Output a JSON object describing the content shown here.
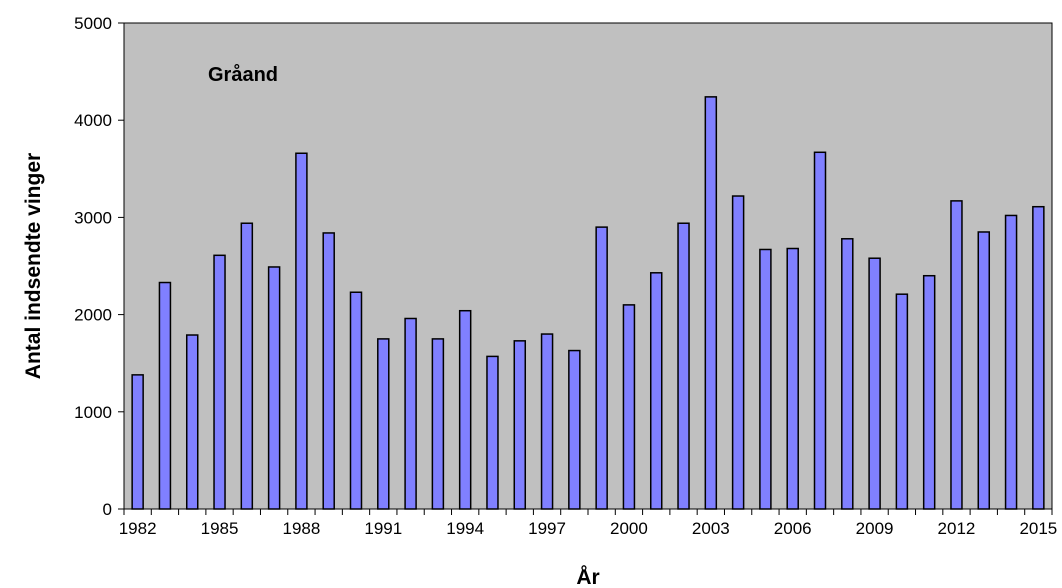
{
  "chart_data": {
    "type": "bar",
    "title": "Gråand",
    "xlabel": "År",
    "ylabel": "Antal indsendte vinger",
    "ylim": [
      0,
      5000
    ],
    "yticks": [
      0,
      1000,
      2000,
      3000,
      4000,
      5000
    ],
    "xtick_labels": [
      "1982",
      "1985",
      "1988",
      "1991",
      "1994",
      "1997",
      "2000",
      "2003",
      "2006",
      "2009",
      "2012",
      "2015"
    ],
    "grid": false,
    "legend": "none",
    "colors": {
      "bar_fill": "#8080ff",
      "bar_stroke": "#000000",
      "plot_background": "#c0c0c0"
    },
    "categories": [
      "1982",
      "1983",
      "1984",
      "1985",
      "1986",
      "1987",
      "1988",
      "1989",
      "1990",
      "1991",
      "1992",
      "1993",
      "1994",
      "1995",
      "1996",
      "1997",
      "1998",
      "1999",
      "2000",
      "2001",
      "2002",
      "2003",
      "2004",
      "2005",
      "2006",
      "2007",
      "2008",
      "2009",
      "2010",
      "2011",
      "2012",
      "2013",
      "2014",
      "2015"
    ],
    "values": [
      1380,
      2330,
      1790,
      2610,
      2940,
      2490,
      3660,
      2840,
      2230,
      1750,
      1960,
      1750,
      2040,
      1570,
      1730,
      1800,
      1630,
      2900,
      2100,
      2430,
      2940,
      4240,
      3220,
      2670,
      2680,
      3670,
      2780,
      2580,
      2210,
      2400,
      3170,
      2850,
      3020,
      3110
    ]
  }
}
